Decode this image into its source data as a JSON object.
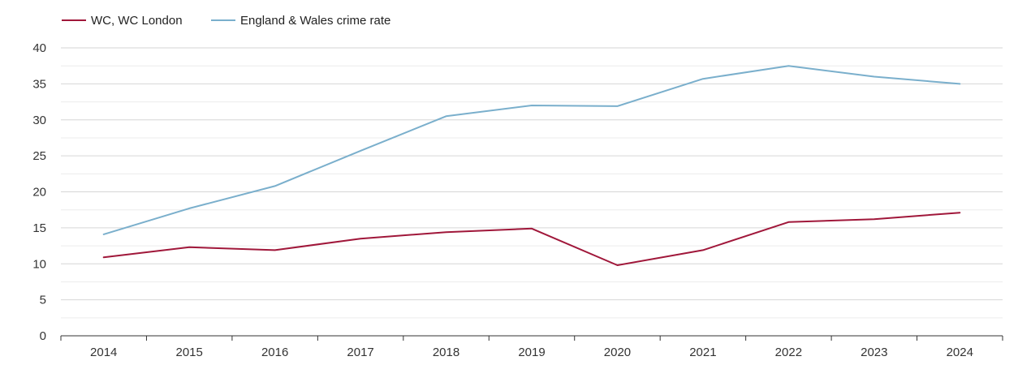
{
  "chart_data": {
    "type": "line",
    "x": [
      "2014",
      "2015",
      "2016",
      "2017",
      "2018",
      "2019",
      "2020",
      "2021",
      "2022",
      "2023",
      "2024"
    ],
    "series": [
      {
        "name": "WC, WC London",
        "color": "#a0173a",
        "values": [
          10.9,
          12.3,
          11.9,
          13.5,
          14.4,
          14.9,
          9.8,
          11.9,
          15.8,
          16.2,
          17.1
        ]
      },
      {
        "name": "England & Wales crime rate",
        "color": "#7aafcc",
        "values": [
          14.1,
          17.7,
          20.8,
          25.7,
          30.5,
          32.0,
          31.9,
          35.7,
          37.5,
          36.0,
          35.0
        ]
      }
    ],
    "ylim": [
      0,
      40
    ],
    "yticks": [
      "0",
      "5",
      "10",
      "15",
      "20",
      "25",
      "30",
      "35",
      "40"
    ],
    "xlabel": "",
    "ylabel": "",
    "grid": true,
    "legend_position": "top-left"
  }
}
